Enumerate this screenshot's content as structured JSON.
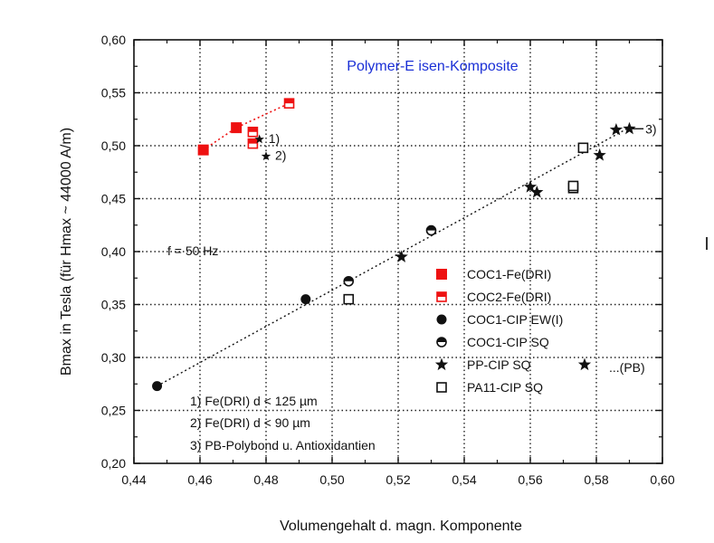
{
  "chart_data": {
    "type": "scatter",
    "title": "Polymer-E isen-Komposite",
    "xlabel": "Volumengehalt d. magn. Komponente",
    "ylabel": "Bmax in Tesla (für Hmax ~ 44000 A/m)",
    "xlim": [
      0.44,
      0.6
    ],
    "ylim": [
      0.2,
      0.6
    ],
    "xticks": [
      "0,44",
      "0,46",
      "0,48",
      "0,50",
      "0,52",
      "0,54",
      "0,56",
      "0,58",
      "0,60"
    ],
    "yticks": [
      "0,20",
      "0,25",
      "0,30",
      "0,35",
      "0,40",
      "0,45",
      "0,50",
      "0,55",
      "0,60"
    ],
    "grid": true,
    "legend_position": "bottom-right",
    "series": [
      {
        "name": "COC1-Fe(DRI)",
        "marker": "filled-square",
        "color": "#ee1111",
        "points": [
          [
            0.461,
            0.496
          ],
          [
            0.471,
            0.517
          ]
        ]
      },
      {
        "name": "COC2-Fe(DRI)",
        "marker": "half-square",
        "color": "#ee1111",
        "points": [
          [
            0.476,
            0.502
          ],
          [
            0.476,
            0.513
          ],
          [
            0.487,
            0.54
          ]
        ]
      },
      {
        "name": "COC1-CIP EW(I)",
        "marker": "filled-circle",
        "color": "#111111",
        "points": [
          [
            0.447,
            0.273
          ],
          [
            0.492,
            0.355
          ]
        ]
      },
      {
        "name": "COC1-CIP SQ",
        "marker": "half-circle",
        "color": "#111111",
        "points": [
          [
            0.505,
            0.372
          ],
          [
            0.53,
            0.42
          ]
        ]
      },
      {
        "name": "PP-CIP SQ",
        "marker": "star",
        "color": "#111111",
        "points": [
          [
            0.521,
            0.395
          ],
          [
            0.56,
            0.461
          ],
          [
            0.562,
            0.456
          ],
          [
            0.581,
            0.491
          ],
          [
            0.586,
            0.515
          ],
          [
            0.59,
            0.516
          ]
        ]
      },
      {
        "name": "PA11-CIP SQ",
        "marker": "open-square",
        "color": "#111111",
        "points": [
          [
            0.505,
            0.355
          ],
          [
            0.573,
            0.46
          ],
          [
            0.573,
            0.462
          ],
          [
            0.576,
            0.498
          ]
        ]
      }
    ],
    "red_trendline": [
      [
        0.461,
        0.496
      ],
      [
        0.471,
        0.517
      ],
      [
        0.487,
        0.54
      ]
    ],
    "black_trendline": [
      [
        0.447,
        0.273
      ],
      [
        0.591,
        0.519
      ]
    ],
    "fe_markers": [
      {
        "x": 0.478,
        "y": 0.506,
        "label": "1)"
      },
      {
        "x": 0.48,
        "y": 0.49,
        "label": "2)"
      }
    ],
    "pb_point": {
      "x": 0.591,
      "y": 0.516,
      "label": "3)"
    },
    "annotations": {
      "frequency": "f = 50 Hz",
      "pb_label": "...(PB)",
      "notes": [
        "1) Fe(DRI) d < 125 µm",
        "2) Fe(DRI) d < 90 µm",
        "3) PB-Polybond u. Antioxidantien"
      ]
    }
  }
}
